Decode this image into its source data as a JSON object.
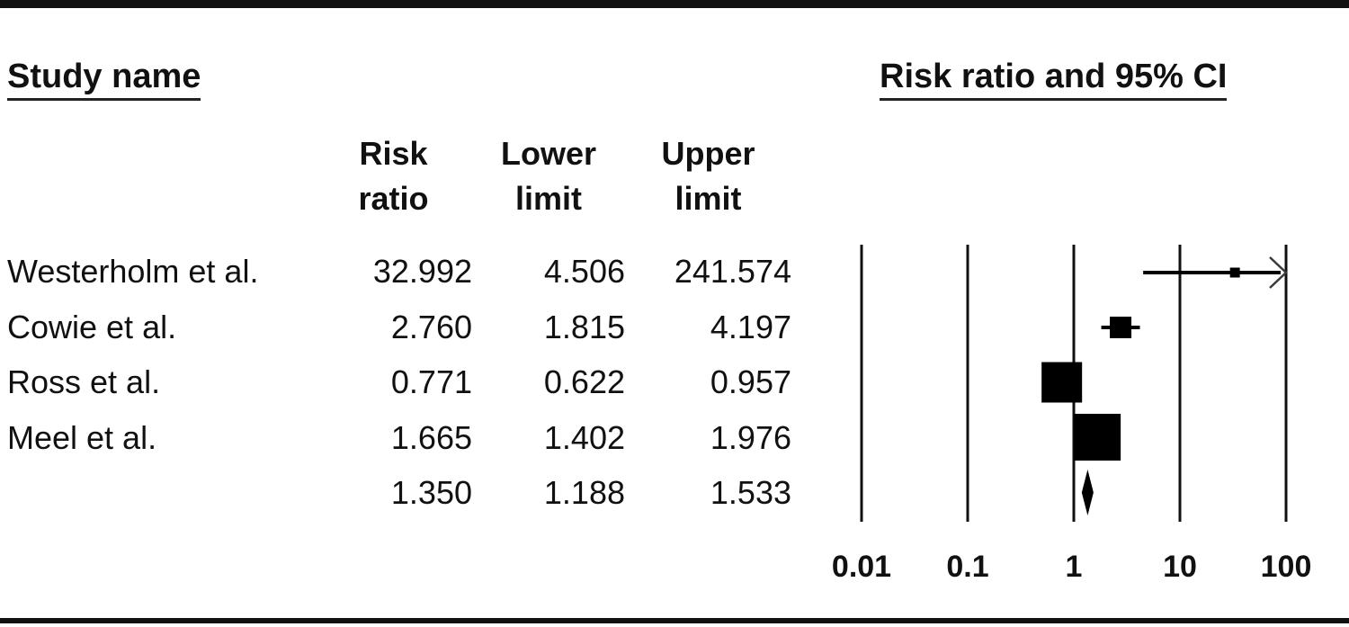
{
  "page": {
    "left_title": "Study name",
    "right_title": "Risk ratio and 95% CI"
  },
  "table": {
    "headers": {
      "risk": {
        "line1": "Risk",
        "line2": "ratio"
      },
      "lower": {
        "line1": "Lower",
        "line2": "limit"
      },
      "upper": {
        "line1": "Upper",
        "line2": "limit"
      }
    },
    "rows": [
      {
        "name": "Westerholm et al.",
        "rr": "32.992",
        "lower": "4.506",
        "upper": "241.574"
      },
      {
        "name": "Cowie et al.",
        "rr": "2.760",
        "lower": "1.815",
        "upper": "4.197"
      },
      {
        "name": "Ross et al.",
        "rr": "0.771",
        "lower": "0.622",
        "upper": "0.957"
      },
      {
        "name": "Meel et al.",
        "rr": "1.665",
        "lower": "1.402",
        "upper": "1.976"
      },
      {
        "name": "",
        "rr": "1.350",
        "lower": "1.188",
        "upper": "1.533"
      }
    ]
  },
  "chart_data": {
    "type": "forest",
    "title": "Risk ratio and 95% CI",
    "x_scale": "log10",
    "xlim": [
      0.01,
      100
    ],
    "x_ticks": [
      0.01,
      0.1,
      1,
      10,
      100
    ],
    "x_tick_labels": [
      "0.01",
      "0.1",
      "1",
      "10",
      "100"
    ],
    "grid": "vertical-lines-at-ticks",
    "studies": [
      {
        "name": "Westerholm et al.",
        "rr": 32.992,
        "lower": 4.506,
        "upper": 241.574,
        "marker_size": 11,
        "upper_clipped": true
      },
      {
        "name": "Cowie et al.",
        "rr": 2.76,
        "lower": 1.815,
        "upper": 4.197,
        "marker_size": 24,
        "upper_clipped": false
      },
      {
        "name": "Ross et al.",
        "rr": 0.771,
        "lower": 0.622,
        "upper": 0.957,
        "marker_size": 45,
        "upper_clipped": false
      },
      {
        "name": "Meel et al.",
        "rr": 1.665,
        "lower": 1.402,
        "upper": 1.976,
        "marker_size": 52,
        "upper_clipped": false
      }
    ],
    "summary": {
      "rr": 1.35,
      "lower": 1.188,
      "upper": 1.533
    },
    "colors": {
      "marker": "#000000",
      "ci_line": "#000000",
      "gridline": "#111111",
      "arrow": "#3a3a3a",
      "text": "#111111"
    }
  }
}
